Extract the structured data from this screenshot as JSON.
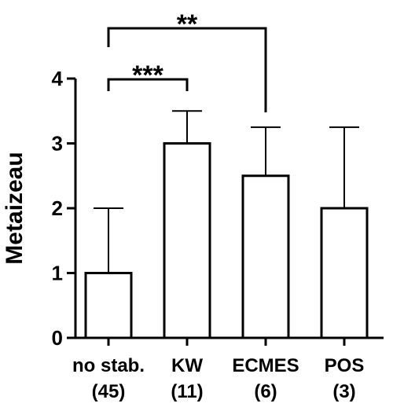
{
  "chart_data": {
    "type": "bar",
    "categories": [
      "no stab.",
      "KW",
      "ECMES",
      "POS"
    ],
    "category_counts": [
      "(45)",
      "(11)",
      "(6)",
      "(3)"
    ],
    "values": [
      1,
      3,
      2.5,
      2
    ],
    "error_upper": [
      2,
      3.5,
      3.25,
      3.25
    ],
    "ylabel": "Metaizeau",
    "ylim": [
      0,
      4
    ],
    "yticks": [
      "0",
      "1",
      "2",
      "3",
      "4"
    ],
    "grid": false,
    "annotations": [
      {
        "from": 0,
        "to": 1,
        "label": "***"
      },
      {
        "from": 0,
        "to": 2,
        "label": "**"
      }
    ],
    "colors": {
      "bar_fill": "#ffffff",
      "stroke": "#000000"
    }
  }
}
